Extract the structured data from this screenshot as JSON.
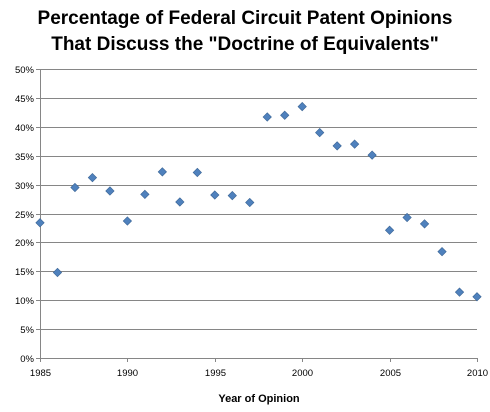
{
  "chart_data": {
    "type": "scatter",
    "title_lines": [
      "Percentage of Federal Circuit Patent Opinions",
      "That Discuss the \"Doctrine of Equivalents\""
    ],
    "xlabel": "Year of Opinion",
    "ylabel": "",
    "xlim": [
      1985,
      2010
    ],
    "ylim": [
      0,
      50
    ],
    "x_ticks": [
      1985,
      1990,
      1995,
      2000,
      2005,
      2010
    ],
    "y_ticks": [
      0,
      5,
      10,
      15,
      20,
      25,
      30,
      35,
      40,
      45,
      50
    ],
    "y_tick_labels": [
      "0%",
      "5%",
      "10%",
      "15%",
      "20%",
      "25%",
      "30%",
      "35%",
      "40%",
      "45%",
      "50%"
    ],
    "marker": "diamond",
    "marker_color": "#4F81BD",
    "grid": "horizontal",
    "legend": "none",
    "x": [
      1985,
      1986,
      1987,
      1988,
      1989,
      1990,
      1991,
      1992,
      1993,
      1994,
      1995,
      1996,
      1997,
      1998,
      1999,
      2000,
      2001,
      2002,
      2003,
      2004,
      2005,
      2006,
      2007,
      2008,
      2009,
      2010
    ],
    "y": [
      23.4,
      14.8,
      29.5,
      31.2,
      28.9,
      23.7,
      28.3,
      32.2,
      27.0,
      32.1,
      28.2,
      28.1,
      26.9,
      41.7,
      42.0,
      43.5,
      39.0,
      36.7,
      37.0,
      35.1,
      22.1,
      24.3,
      23.2,
      18.4,
      11.4,
      10.6
    ]
  }
}
